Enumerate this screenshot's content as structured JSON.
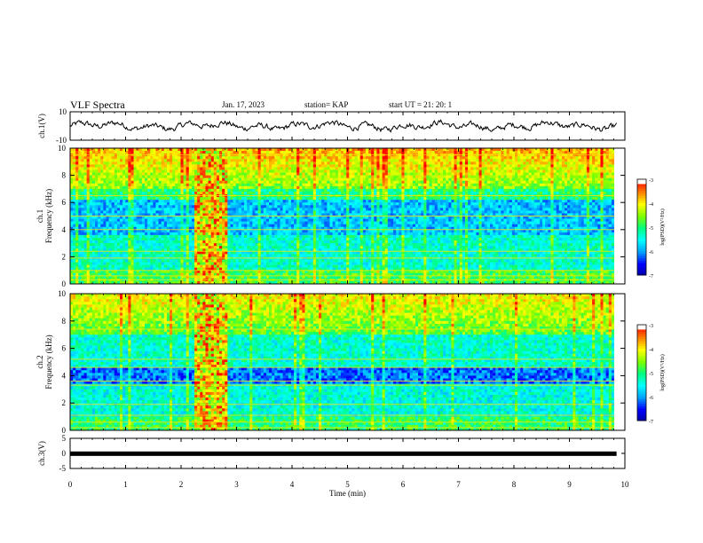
{
  "header": {
    "title": "VLF Spectra",
    "date": "Jan. 17, 2023",
    "station": "station= KAP",
    "start": "start  UT  =   21: 20: 1"
  },
  "chart_data": [
    {
      "type": "line",
      "name": "ch1-waveform-panel",
      "ylabel": "ch.1(V)",
      "xlim": [
        0,
        10
      ],
      "ylim": [
        -10,
        10
      ],
      "yticks": [
        "10",
        "-10"
      ],
      "description_values": "noisy waveform oscillating roughly between -4 and 4 V"
    },
    {
      "type": "heatmap",
      "name": "ch1-spectrogram",
      "ylabel": "ch.1\nFrequency (kHz)",
      "ylabel_line1": "ch.1",
      "ylabel_line2": "Frequency (kHz)",
      "xlim": [
        0,
        10
      ],
      "ylim": [
        0,
        10
      ],
      "yticks": [
        "0",
        "2",
        "4",
        "6",
        "8",
        "10"
      ],
      "burst_interval_min": [
        2.2,
        2.8
      ],
      "colorbar": {
        "label": "log(PSD)(V²/Hz)",
        "ticks": [
          "-3",
          "-4",
          "-5",
          "-6",
          "-7"
        ],
        "range": [
          -7,
          -3
        ]
      }
    },
    {
      "type": "heatmap",
      "name": "ch2-spectrogram",
      "ylabel_line1": "ch.2",
      "ylabel_line2": "Frequency (kHz)",
      "xlim": [
        0,
        10
      ],
      "ylim": [
        0,
        10
      ],
      "yticks": [
        "0",
        "2",
        "4",
        "6",
        "8",
        "10"
      ],
      "burst_interval_min": [
        2.2,
        2.8
      ],
      "colorbar": {
        "label": "log(PSD)(V²/Hz)",
        "ticks": [
          "-3",
          "-4",
          "-5",
          "-6",
          "-7"
        ],
        "range": [
          -7,
          -3
        ]
      }
    },
    {
      "type": "line",
      "name": "ch3-waveform-panel",
      "ylabel": "ch.3(V)",
      "xlim": [
        0,
        10
      ],
      "ylim": [
        -5,
        5
      ],
      "yticks": [
        "5",
        "0",
        "-5"
      ],
      "xlabel": "Time  (min)",
      "xticks": [
        "0",
        "1",
        "2",
        "3",
        "4",
        "5",
        "6",
        "7",
        "8",
        "9",
        "10"
      ]
    }
  ],
  "colors": {
    "colormap": [
      "#0000a0",
      "#0000ff",
      "#00a0ff",
      "#00ffff",
      "#00ff80",
      "#80ff00",
      "#ffff00",
      "#ff8000",
      "#ff0000",
      "#ffffff"
    ]
  }
}
